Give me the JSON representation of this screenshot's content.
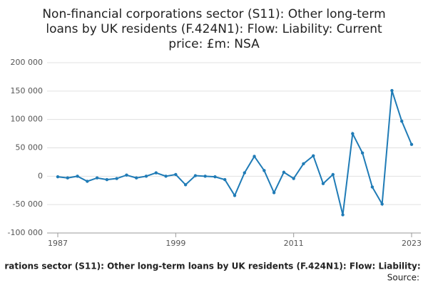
{
  "chart_data": {
    "type": "line",
    "title": [
      "Non-financial corporations sector (S11): Other long-term",
      "loans by UK residents (F.424N1): Flow: Liability: Current",
      "price: £m: NSA"
    ],
    "x_label": "rations sector (S11): Other long-term loans by UK residents (F.424N1): Flow: Liability:",
    "source": "Source:",
    "x": [
      1987,
      1988,
      1989,
      1990,
      1991,
      1992,
      1993,
      1994,
      1995,
      1996,
      1997,
      1998,
      1999,
      2000,
      2001,
      2002,
      2003,
      2004,
      2005,
      2006,
      2007,
      2008,
      2009,
      2010,
      2011,
      2012,
      2013,
      2014,
      2015,
      2016,
      2017,
      2018,
      2019,
      2020,
      2021,
      2022,
      2023
    ],
    "series": [
      {
        "color": "#1f7bb6",
        "values": [
          -1000,
          -3000,
          0,
          -9000,
          -3000,
          -6000,
          -4000,
          2000,
          -3000,
          0,
          6000,
          0,
          3000,
          -15000,
          1000,
          0,
          -1000,
          -6000,
          -34000,
          6000,
          35000,
          10000,
          -29000,
          7000,
          -4000,
          22000,
          36000,
          -13000,
          3000,
          -68000,
          75000,
          41000,
          -19000,
          -49000,
          151000,
          97000,
          56000
        ]
      }
    ],
    "xlim": [
      1987,
      2023
    ],
    "xticks": [
      1987,
      1999,
      2011,
      2023
    ],
    "ylim": [
      -100000,
      200000
    ],
    "yticks": [
      {
        "value": -100000,
        "label": "-100 000"
      },
      {
        "value": -50000,
        "label": "-50 000"
      },
      0,
      {
        "value": 50000,
        "label": "50 000"
      },
      {
        "value": 100000,
        "label": "100 000"
      },
      {
        "value": 150000,
        "label": "150 000"
      },
      {
        "value": 200000,
        "label": "200 000"
      }
    ],
    "grid": true
  }
}
